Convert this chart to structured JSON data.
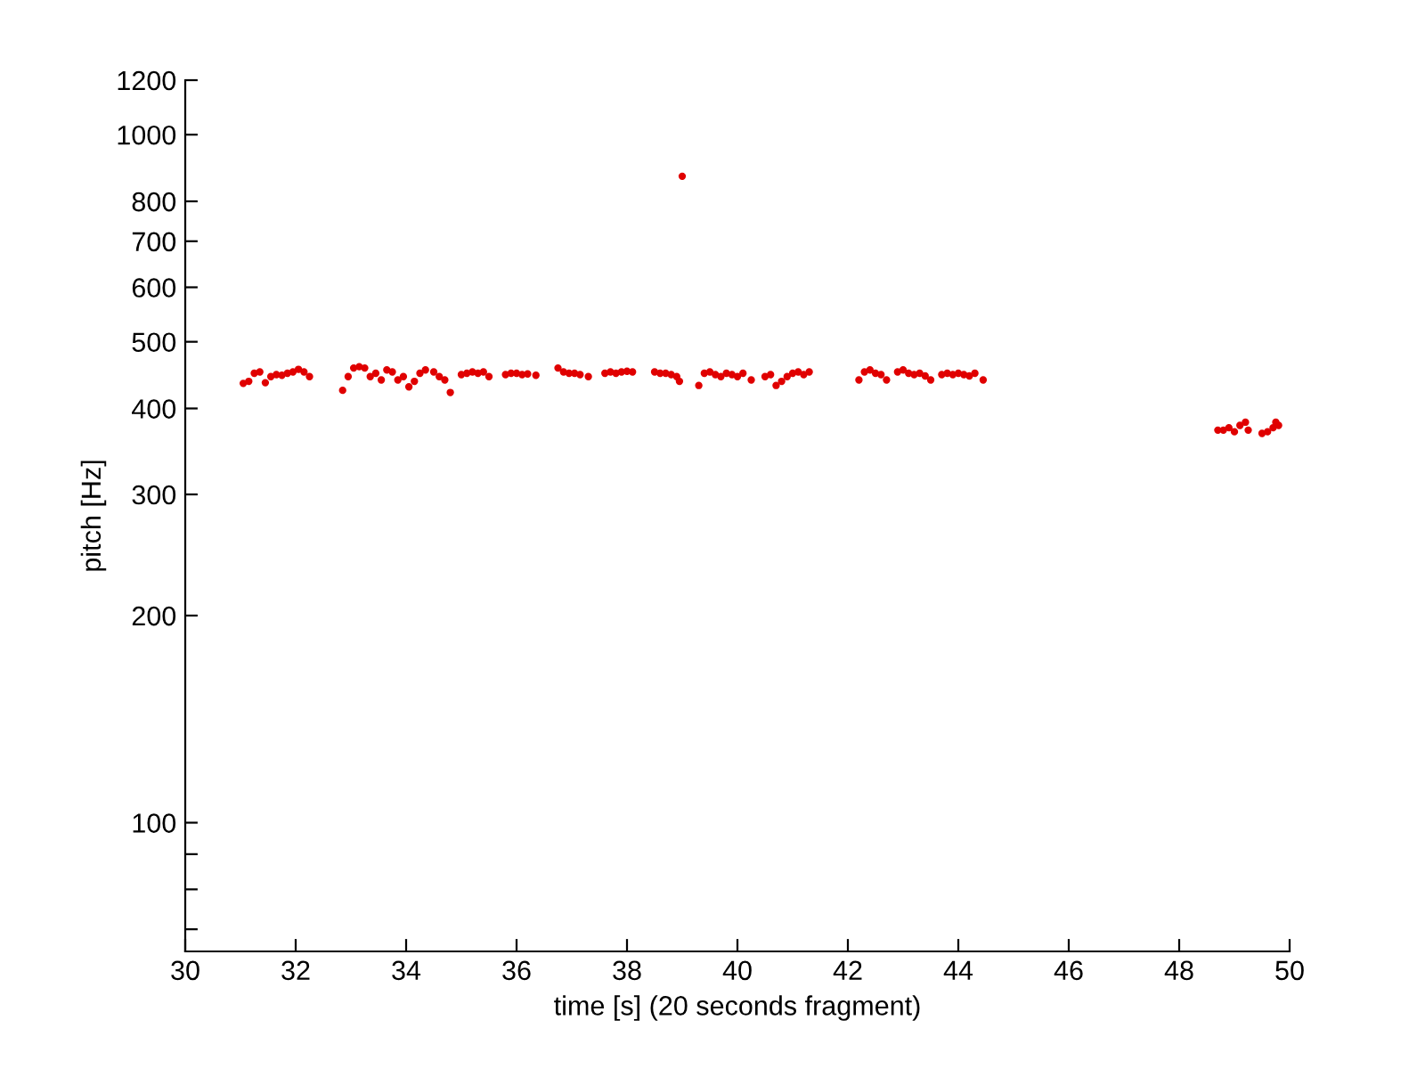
{
  "chart_data": {
    "type": "scatter",
    "xlabel": "time [s] (20 seconds fragment)",
    "ylabel": "pitch [Hz]",
    "log": "y",
    "grid": false,
    "marker": "circle",
    "xlim": [
      30,
      50
    ],
    "xticks": [
      30,
      32,
      34,
      36,
      38,
      40,
      42,
      44,
      46,
      48,
      50
    ],
    "ylim": [
      65,
      1200
    ],
    "yticks": [
      {
        "value": 70,
        "label": null
      },
      {
        "value": 80,
        "label": null
      },
      {
        "value": 90,
        "label": null
      },
      100,
      200,
      300,
      400,
      500,
      600,
      700,
      800,
      1000,
      1200
    ],
    "series": [
      {
        "color": "#e00000",
        "x": [
          31.05,
          31.15,
          31.25,
          31.35,
          31.45,
          31.55,
          31.65,
          31.75,
          31.85,
          31.95,
          32.05,
          32.15,
          32.25,
          32.85,
          32.95,
          33.05,
          33.15,
          33.25,
          33.35,
          33.45,
          33.55,
          33.65,
          33.75,
          33.85,
          33.95,
          34.05,
          34.15,
          34.25,
          34.35,
          34.5,
          34.6,
          34.7,
          34.8,
          35.0,
          35.1,
          35.2,
          35.3,
          35.4,
          35.5,
          35.8,
          35.9,
          36.0,
          36.1,
          36.2,
          36.35,
          36.75,
          36.85,
          36.95,
          37.05,
          37.15,
          37.3,
          37.6,
          37.7,
          37.8,
          37.9,
          38.0,
          38.1,
          38.5,
          38.6,
          38.7,
          38.8,
          38.9,
          38.95,
          39.0,
          39.3,
          39.4,
          39.5,
          39.6,
          39.7,
          39.8,
          39.9,
          40.0,
          40.1,
          40.25,
          40.5,
          40.6,
          40.7,
          40.8,
          40.9,
          41.0,
          41.1,
          41.2,
          41.3,
          42.2,
          42.3,
          42.4,
          42.5,
          42.6,
          42.7,
          42.9,
          43.0,
          43.1,
          43.2,
          43.3,
          43.4,
          43.5,
          43.7,
          43.8,
          43.9,
          44.0,
          44.1,
          44.2,
          44.3,
          44.45,
          48.7,
          48.8,
          48.9,
          49.0,
          49.1,
          49.2,
          49.25,
          49.5,
          49.6,
          49.7,
          49.75,
          49.8
        ],
        "values": [
          435,
          438,
          450,
          452,
          436,
          445,
          448,
          447,
          450,
          452,
          456,
          452,
          445,
          425,
          445,
          458,
          460,
          458,
          445,
          450,
          440,
          455,
          452,
          440,
          445,
          430,
          438,
          450,
          455,
          452,
          445,
          440,
          422,
          448,
          450,
          452,
          450,
          452,
          445,
          448,
          450,
          450,
          448,
          449,
          447,
          458,
          452,
          450,
          450,
          448,
          445,
          450,
          452,
          450,
          452,
          453,
          452,
          452,
          450,
          450,
          448,
          445,
          438,
          870,
          432,
          450,
          452,
          448,
          445,
          450,
          448,
          445,
          450,
          440,
          445,
          448,
          432,
          438,
          445,
          450,
          452,
          448,
          452,
          440,
          452,
          455,
          450,
          448,
          440,
          452,
          455,
          450,
          448,
          450,
          446,
          440,
          448,
          450,
          448,
          450,
          448,
          446,
          450,
          440,
          372,
          372,
          375,
          370,
          378,
          382,
          372,
          368,
          370,
          375,
          382,
          378
        ]
      }
    ]
  }
}
